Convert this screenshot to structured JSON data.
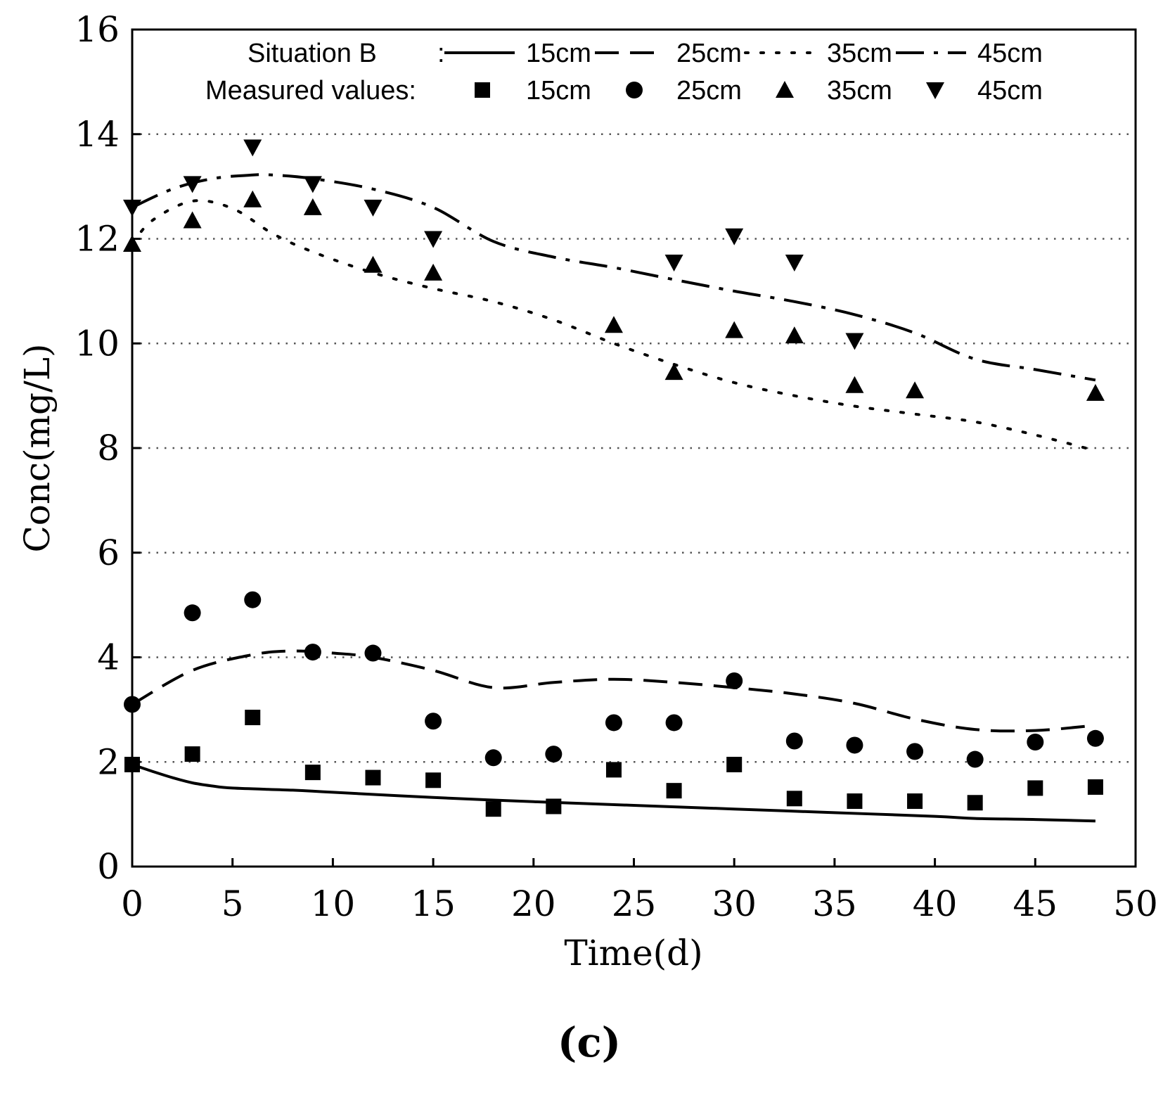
{
  "chart_data": {
    "type": "line",
    "title": "",
    "panel_label": "(c)",
    "xlabel": "Time(d)",
    "ylabel": "Conc(mg/L)",
    "xlim": [
      0,
      50
    ],
    "ylim": [
      0,
      16
    ],
    "xticks": [
      0,
      5,
      10,
      15,
      20,
      25,
      30,
      35,
      40,
      45,
      50
    ],
    "yticks": [
      0,
      2,
      4,
      6,
      8,
      10,
      12,
      14,
      16
    ],
    "grid": "horizontal dotted",
    "legend_position": "top",
    "legend": {
      "simulated_label": "Situation B",
      "simulated_colon": ":",
      "measured_label": "Measured values:",
      "entries": [
        "15cm",
        "25cm",
        "35cm",
        "45cm"
      ]
    },
    "colors": {
      "ink": "#000000",
      "grid": "#555555",
      "background": "#ffffff"
    },
    "series": [
      {
        "name": "Situation B 15cm",
        "kind": "simulated",
        "style": "solid",
        "x": [
          0,
          1,
          2,
          3,
          4,
          5,
          8,
          10,
          15,
          20,
          25,
          30,
          35,
          40,
          42,
          45,
          48
        ],
        "values": [
          1.95,
          1.82,
          1.7,
          1.6,
          1.54,
          1.5,
          1.46,
          1.42,
          1.32,
          1.24,
          1.17,
          1.1,
          1.03,
          0.96,
          0.92,
          0.9,
          0.87
        ]
      },
      {
        "name": "Situation B 25cm",
        "kind": "simulated",
        "style": "dashed",
        "x": [
          0,
          3,
          6,
          8,
          10,
          12,
          15,
          18,
          21,
          24,
          27,
          30,
          33,
          36,
          39,
          42,
          45,
          48
        ],
        "values": [
          3.1,
          3.75,
          4.05,
          4.12,
          4.08,
          4.0,
          3.75,
          3.42,
          3.52,
          3.58,
          3.52,
          3.42,
          3.3,
          3.12,
          2.82,
          2.62,
          2.6,
          2.7
        ]
      },
      {
        "name": "Situation B 35cm",
        "kind": "simulated",
        "style": "dotted",
        "x": [
          0,
          1,
          3,
          5,
          7,
          9,
          12,
          15,
          18,
          21,
          24,
          27,
          30,
          33,
          36,
          39,
          42,
          45,
          48
        ],
        "values": [
          11.9,
          12.35,
          12.72,
          12.58,
          12.1,
          11.75,
          11.35,
          11.05,
          10.8,
          10.45,
          10.0,
          9.6,
          9.25,
          9.0,
          8.8,
          8.65,
          8.5,
          8.25,
          7.95
        ]
      },
      {
        "name": "Situation B 45cm",
        "kind": "simulated",
        "style": "dashdot",
        "x": [
          0,
          2,
          4,
          6,
          7,
          9,
          12,
          15,
          18,
          21,
          24,
          27,
          30,
          33,
          36,
          39,
          42,
          45,
          48
        ],
        "values": [
          12.6,
          12.95,
          13.15,
          13.22,
          13.22,
          13.15,
          12.95,
          12.6,
          11.95,
          11.65,
          11.45,
          11.22,
          11.0,
          10.8,
          10.55,
          10.2,
          9.7,
          9.5,
          9.3
        ]
      },
      {
        "name": "Measured 15cm",
        "kind": "measured",
        "marker": "square",
        "x": [
          0,
          3,
          6,
          9,
          12,
          15,
          18,
          21,
          24,
          27,
          30,
          33,
          36,
          39,
          42,
          45,
          48
        ],
        "values": [
          1.95,
          2.15,
          2.85,
          1.8,
          1.7,
          1.65,
          1.1,
          1.15,
          1.85,
          1.45,
          1.95,
          1.3,
          1.25,
          1.25,
          1.22,
          1.5,
          1.52
        ]
      },
      {
        "name": "Measured 25cm",
        "kind": "measured",
        "marker": "circle",
        "x": [
          0,
          3,
          6,
          9,
          12,
          15,
          18,
          21,
          24,
          27,
          30,
          33,
          36,
          39,
          42,
          45,
          48
        ],
        "values": [
          3.1,
          4.85,
          5.1,
          4.1,
          4.08,
          2.78,
          2.08,
          2.15,
          2.75,
          2.75,
          3.55,
          2.4,
          2.32,
          2.2,
          2.05,
          2.38,
          2.45
        ]
      },
      {
        "name": "Measured 35cm",
        "kind": "measured",
        "marker": "triangle-up",
        "x": [
          0,
          3,
          6,
          9,
          12,
          15,
          24,
          27,
          30,
          33,
          36,
          39,
          48
        ],
        "values": [
          11.9,
          12.35,
          12.75,
          12.6,
          11.5,
          11.35,
          10.35,
          9.45,
          10.25,
          10.15,
          9.2,
          9.1,
          9.05
        ]
      },
      {
        "name": "Measured 45cm",
        "kind": "measured",
        "marker": "triangle-down",
        "x": [
          0,
          3,
          6,
          9,
          12,
          15,
          27,
          30,
          33,
          36
        ],
        "values": [
          12.6,
          13.05,
          13.75,
          13.05,
          12.6,
          12.0,
          11.55,
          12.05,
          11.55,
          10.05
        ]
      }
    ]
  }
}
